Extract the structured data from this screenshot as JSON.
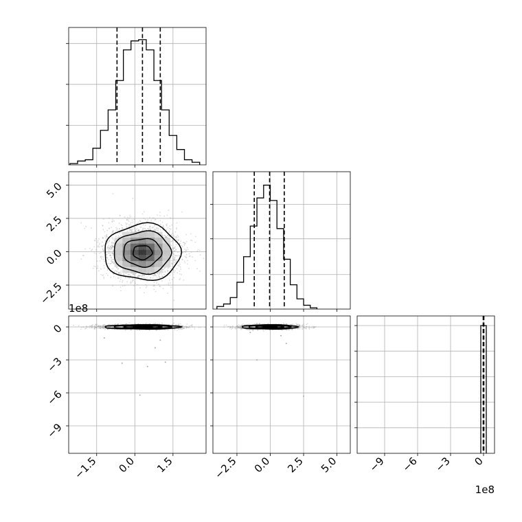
{
  "chart_data": {
    "type": "corner",
    "grid": true,
    "parameters": [
      {
        "index": 0,
        "label": "",
        "range": [
          -2.6,
          2.8
        ],
        "quantiles": [
          -0.7,
          0.3,
          1.0
        ],
        "scale_label": ""
      },
      {
        "index": 1,
        "label": "",
        "range": [
          -4.3,
          6.0
        ],
        "quantiles": [
          -1.2,
          -0.05,
          1.05
        ],
        "scale_label": ""
      },
      {
        "index": 2,
        "label": "",
        "range": [
          -11.5,
          1.0
        ],
        "quantiles": [
          -0.03,
          0.0,
          0.03
        ],
        "scale_label": "1e8"
      }
    ],
    "histograms": [
      {
        "param": 0,
        "bin_edges": [
          -2.55,
          -2.25,
          -1.95,
          -1.65,
          -1.35,
          -1.05,
          -0.75,
          -0.45,
          -0.15,
          0.15,
          0.45,
          0.75,
          1.05,
          1.35,
          1.65,
          1.95,
          2.25,
          2.55
        ],
        "counts": [
          0.01,
          0.03,
          0.04,
          0.13,
          0.27,
          0.43,
          0.66,
          0.9,
          0.97,
          0.98,
          0.9,
          0.66,
          0.43,
          0.23,
          0.12,
          0.04,
          0.02
        ]
      },
      {
        "param": 1,
        "bin_edges": [
          -4.0,
          -3.5,
          -3.0,
          -2.5,
          -2.0,
          -1.5,
          -1.0,
          -0.5,
          0.0,
          0.5,
          1.0,
          1.5,
          2.0,
          2.5,
          3.0,
          3.5
        ],
        "counts": [
          0.02,
          0.04,
          0.09,
          0.21,
          0.41,
          0.65,
          0.87,
          0.97,
          0.85,
          0.63,
          0.39,
          0.19,
          0.08,
          0.03,
          0.01
        ]
      },
      {
        "param": 2,
        "bin_edges": [
          -0.25,
          0.0,
          0.25
        ],
        "counts": [
          1.0,
          1.0
        ]
      }
    ],
    "panels_2d": [
      {
        "x_param": 0,
        "y_param": 1,
        "center": [
          0.3,
          -0.05
        ],
        "sigma": [
          0.75,
          1.05
        ],
        "outliers": []
      },
      {
        "x_param": 0,
        "y_param": 2,
        "center": [
          0.3,
          0.0
        ],
        "sigma": [
          0.75,
          0.1
        ],
        "outliers": [
          [
            -1.2,
            -1.0
          ],
          [
            0.8,
            -1.9
          ],
          [
            1.0,
            -1.2
          ],
          [
            0.2,
            -6.2
          ],
          [
            -0.5,
            -3.3
          ],
          [
            0.5,
            -3.6
          ],
          [
            1.2,
            -3.2
          ]
        ]
      },
      {
        "x_param": 1,
        "y_param": 2,
        "center": [
          -0.05,
          0.0
        ],
        "sigma": [
          1.05,
          0.1
        ],
        "outliers": [
          [
            -1.5,
            -0.5
          ],
          [
            1.2,
            -1.5
          ],
          [
            2.5,
            -6.3
          ],
          [
            -1.0,
            -3.0
          ],
          [
            0.8,
            -0.8
          ]
        ]
      }
    ],
    "ticks": {
      "x": [
        {
          "param": 0,
          "values": [
            -1.5,
            0.0,
            1.5
          ],
          "labels": [
            "−1.5",
            "0.0",
            "1.5"
          ]
        },
        {
          "param": 1,
          "values": [
            -2.5,
            0.0,
            2.5,
            5.0
          ],
          "labels": [
            "−2.5",
            "0.0",
            "2.5",
            "5.0"
          ]
        },
        {
          "param": 2,
          "values": [
            -9,
            -6,
            -3,
            0
          ],
          "labels": [
            "−9",
            "−6",
            "−3",
            "0"
          ]
        }
      ],
      "y": [
        {
          "param": 1,
          "values": [
            -2.5,
            0.0,
            2.5,
            5.0
          ],
          "labels": [
            "−2.5",
            "0.0",
            "2.5",
            "5.0"
          ]
        },
        {
          "param": 2,
          "values": [
            0,
            -3,
            -6,
            -9
          ],
          "labels": [
            "0",
            "−3",
            "−6",
            "−9"
          ]
        }
      ],
      "hist_y": [
        {
          "param": 0,
          "values": [
            0.31,
            0.63,
            0.95
          ]
        },
        {
          "param": 1,
          "values": [
            0.27,
            0.55,
            0.82
          ]
        },
        {
          "param": 2,
          "values": [
            0.2,
            0.4,
            0.6,
            0.8,
            1.0
          ]
        }
      ]
    },
    "contour_levels_sigma": [
      0.5,
      1.0,
      1.5,
      2.0
    ]
  }
}
